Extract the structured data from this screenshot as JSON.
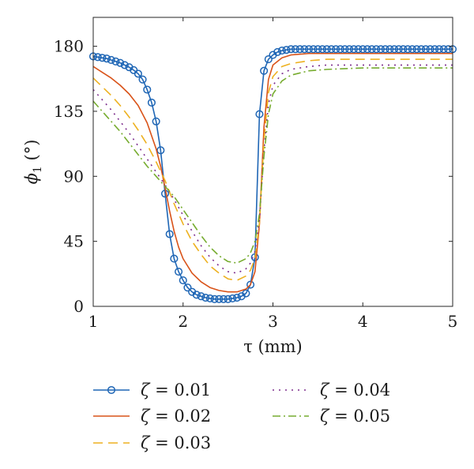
{
  "chart_data": {
    "type": "line",
    "title": "",
    "xlabel": "τ (mm)",
    "ylabel_parts": {
      "symbol": "ϕ",
      "subscript": "1",
      "unit": " (°)"
    },
    "xlim": [
      1,
      5
    ],
    "ylim": [
      0,
      200
    ],
    "xticks": [
      1,
      2,
      3,
      4,
      5
    ],
    "yticks": [
      0,
      45,
      90,
      135,
      180
    ],
    "xtick_labels": [
      "1",
      "2",
      "3",
      "4",
      "5"
    ],
    "ytick_labels": [
      "0",
      "45",
      "90",
      "135",
      "180"
    ],
    "grid": false,
    "legend_position": "below",
    "series": [
      {
        "name_symbol": "ζ",
        "name_value": " = 0.01",
        "color": "#1f66b5",
        "dash": "",
        "marker": "circle",
        "x": [
          1.0,
          1.05,
          1.1,
          1.15,
          1.2,
          1.25,
          1.3,
          1.35,
          1.4,
          1.45,
          1.5,
          1.55,
          1.6,
          1.65,
          1.7,
          1.75,
          1.8,
          1.85,
          1.9,
          1.95,
          2.0,
          2.05,
          2.1,
          2.15,
          2.2,
          2.25,
          2.3,
          2.35,
          2.4,
          2.45,
          2.5,
          2.55,
          2.6,
          2.65,
          2.7,
          2.75,
          2.8,
          2.85,
          2.9,
          2.95,
          3.0,
          3.05,
          3.1,
          3.15,
          3.2,
          3.3,
          3.4,
          3.5,
          3.6,
          3.7,
          3.8,
          3.9,
          4.0,
          4.1,
          4.2,
          4.3,
          4.4,
          4.5,
          4.6,
          4.7,
          4.8,
          4.9,
          5.0
        ],
        "y": [
          173,
          172.5,
          172,
          171.5,
          170.5,
          169.5,
          168.5,
          167,
          165.5,
          163.5,
          161,
          157,
          150,
          141,
          128,
          108,
          78,
          50,
          33,
          24,
          18,
          13,
          10,
          8,
          7,
          6,
          5.5,
          5,
          5,
          5,
          5,
          5.5,
          6,
          7,
          9,
          15,
          34,
          133,
          163,
          171,
          174,
          176,
          177,
          177.5,
          178,
          178,
          178,
          178,
          178,
          178,
          178,
          178,
          178,
          178,
          178,
          178,
          178,
          178,
          178,
          178,
          178,
          178,
          178
        ],
        "markers_x": [
          1.0,
          1.05,
          1.1,
          1.15,
          1.2,
          1.25,
          1.3,
          1.35,
          1.4,
          1.45,
          1.5,
          1.55,
          1.6,
          1.65,
          1.7,
          1.75,
          1.8,
          1.85,
          1.9,
          1.95,
          2.0,
          2.05,
          2.1,
          2.15,
          2.2,
          2.25,
          2.3,
          2.35,
          2.4,
          2.45,
          2.5,
          2.55,
          2.6,
          2.65,
          2.7,
          2.75,
          2.8,
          2.85,
          2.9,
          2.95,
          3.0,
          3.05,
          3.1,
          3.15,
          3.2,
          3.25,
          3.3,
          3.35,
          3.4,
          3.45,
          3.5,
          3.55,
          3.6,
          3.65,
          3.7,
          3.75,
          3.8,
          3.85,
          3.9,
          3.95,
          4.0,
          4.05,
          4.1,
          4.15,
          4.2,
          4.25,
          4.3,
          4.35,
          4.4,
          4.45,
          4.5,
          4.55,
          4.6,
          4.65,
          4.7,
          4.75,
          4.8,
          4.85,
          4.9,
          4.95,
          5.0
        ]
      },
      {
        "name_symbol": "ζ",
        "name_value": " = 0.02",
        "color": "#d95319",
        "dash": "",
        "marker": "",
        "x": [
          1.0,
          1.1,
          1.2,
          1.3,
          1.4,
          1.5,
          1.6,
          1.7,
          1.75,
          1.8,
          1.85,
          1.9,
          1.95,
          2.0,
          2.1,
          2.2,
          2.3,
          2.4,
          2.5,
          2.6,
          2.7,
          2.75,
          2.8,
          2.85,
          2.9,
          2.95,
          3.0,
          3.1,
          3.2,
          3.4,
          3.6,
          4.0,
          4.5,
          5.0
        ],
        "y": [
          166,
          162,
          158,
          153,
          147,
          139,
          127,
          109,
          97,
          82,
          66,
          52,
          41,
          33,
          23,
          17,
          13,
          11,
          10,
          10,
          12,
          15,
          24,
          57,
          124,
          157,
          167,
          172,
          174,
          175,
          175,
          175,
          175,
          175
        ]
      },
      {
        "name_symbol": "ζ",
        "name_value": " = 0.03",
        "color": "#edb120",
        "dash": "12,7",
        "marker": "",
        "x": [
          1.0,
          1.1,
          1.2,
          1.3,
          1.4,
          1.5,
          1.6,
          1.7,
          1.8,
          1.85,
          1.9,
          2.0,
          2.1,
          2.2,
          2.3,
          2.4,
          2.5,
          2.6,
          2.7,
          2.75,
          2.8,
          2.85,
          2.9,
          2.95,
          3.0,
          3.1,
          3.2,
          3.4,
          3.6,
          4.0,
          4.5,
          5.0
        ],
        "y": [
          158,
          152,
          146,
          139,
          131,
          122,
          112,
          100,
          87,
          79,
          71,
          57,
          45,
          36,
          28,
          23,
          19,
          18,
          21,
          25,
          33,
          58,
          115,
          148,
          159,
          166,
          168,
          170,
          171,
          171,
          171,
          171
        ]
      },
      {
        "name_symbol": "ζ",
        "name_value": " = 0.04",
        "color": "#7e2f8e",
        "dash": "2,6",
        "marker": "",
        "x": [
          1.0,
          1.1,
          1.2,
          1.3,
          1.4,
          1.5,
          1.6,
          1.7,
          1.8,
          1.9,
          2.0,
          2.1,
          2.2,
          2.3,
          2.4,
          2.5,
          2.6,
          2.7,
          2.75,
          2.8,
          2.85,
          2.9,
          2.95,
          3.0,
          3.1,
          3.2,
          3.4,
          3.6,
          4.0,
          4.5,
          5.0
        ],
        "y": [
          150,
          143,
          136,
          128,
          120,
          111,
          102,
          93,
          84,
          74,
          63,
          52,
          42,
          34,
          28,
          24,
          23,
          26,
          30,
          38,
          60,
          108,
          140,
          153,
          161,
          164,
          166,
          167,
          167,
          167,
          167
        ]
      },
      {
        "name_symbol": "ζ",
        "name_value": " = 0.05",
        "color": "#77ac30",
        "dash": "10,4,2,4",
        "marker": "",
        "x": [
          1.0,
          1.1,
          1.2,
          1.3,
          1.4,
          1.5,
          1.6,
          1.7,
          1.8,
          1.9,
          2.0,
          2.1,
          2.2,
          2.3,
          2.4,
          2.5,
          2.6,
          2.7,
          2.75,
          2.8,
          2.85,
          2.9,
          2.95,
          3.0,
          3.1,
          3.2,
          3.4,
          3.6,
          4.0,
          4.5,
          5.0
        ],
        "y": [
          142,
          135,
          128,
          121,
          113,
          105,
          97,
          90,
          83,
          76,
          67,
          58,
          49,
          41,
          35,
          31,
          30,
          33,
          37,
          45,
          64,
          104,
          133,
          147,
          156,
          160,
          163,
          164,
          165,
          165,
          165
        ]
      }
    ]
  }
}
